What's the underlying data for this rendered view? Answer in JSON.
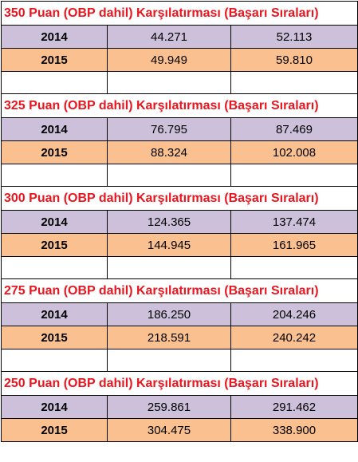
{
  "sections": [
    {
      "title": "350 Puan (OBP dahil) Karşılatırması  (Başarı Sıraları)",
      "rows": [
        {
          "year": "2014",
          "value1": "44.271",
          "value2": "52.113"
        },
        {
          "year": "2015",
          "value1": "49.949",
          "value2": "59.810"
        }
      ]
    },
    {
      "title": "325 Puan (OBP dahil) Karşılatırması  (Başarı Sıraları)",
      "rows": [
        {
          "year": "2014",
          "value1": "76.795",
          "value2": "87.469"
        },
        {
          "year": "2015",
          "value1": "88.324",
          "value2": "102.008"
        }
      ]
    },
    {
      "title": "300 Puan (OBP dahil) Karşılatırması  (Başarı Sıraları)",
      "rows": [
        {
          "year": "2014",
          "value1": "124.365",
          "value2": "137.474"
        },
        {
          "year": "2015",
          "value1": "144.945",
          "value2": "161.965"
        }
      ]
    },
    {
      "title": "275 Puan (OBP dahil) Karşılatırması  (Başarı Sıraları)",
      "rows": [
        {
          "year": "2014",
          "value1": "186.250",
          "value2": "204.246"
        },
        {
          "year": "2015",
          "value1": "218.591",
          "value2": "240.242"
        }
      ]
    },
    {
      "title": "250 Puan (OBP dahil) Karşılatırması  (Başarı Sıraları)",
      "rows": [
        {
          "year": "2014",
          "value1": "259.861",
          "value2": "291.462"
        },
        {
          "year": "2015",
          "value1": "304.475",
          "value2": "338.900"
        }
      ]
    }
  ],
  "colors": {
    "title_text": "#e8161f",
    "row_2014_bg": "#ccc0da",
    "row_2015_bg": "#fac090",
    "grid_lines": "#000000"
  }
}
